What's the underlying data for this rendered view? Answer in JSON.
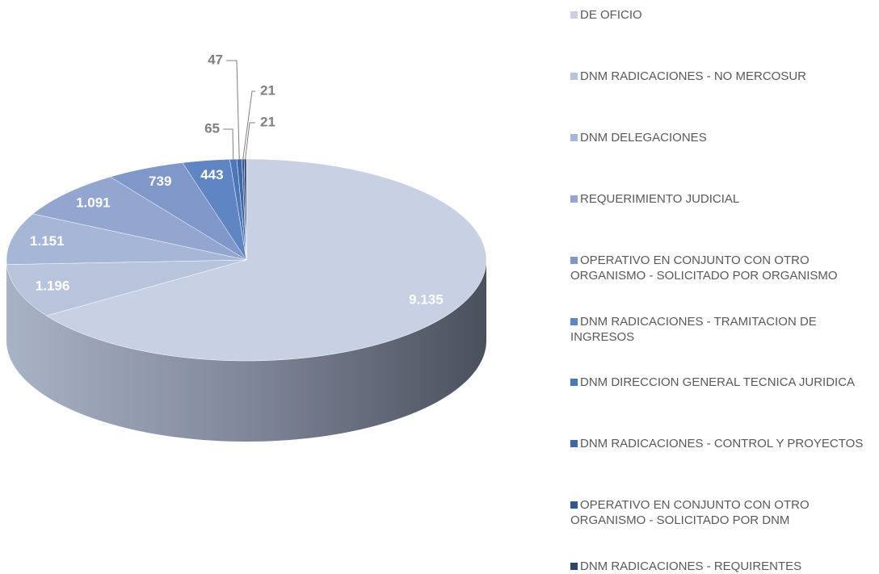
{
  "chart_data": {
    "type": "pie",
    "categories": [
      "DE OFICIO",
      "DNM RADICACIONES - NO MERCOSUR",
      "DNM DELEGACIONES",
      "REQUERIMIENTO JUDICIAL",
      "OPERATIVO EN CONJUNTO CON OTRO ORGANISMO - SOLICITADO POR ORGANISMO",
      "DNM RADICACIONES - TRAMITACION DE INGRESOS",
      "DNM DIRECCION GENERAL TECNICA JURIDICA",
      "DNM RADICACIONES - CONTROL Y PROYECTOS",
      "OPERATIVO EN CONJUNTO CON OTRO ORGANISMO - SOLICITADO POR DNM",
      "DNM RADICACIONES - REQUIRENTES"
    ],
    "values": [
      9135,
      1196,
      1151,
      1091,
      739,
      443,
      65,
      47,
      21,
      21
    ],
    "value_labels": [
      "9.135",
      "1.196",
      "1.151",
      "1.091",
      "739",
      "443",
      "65",
      "47",
      "21",
      "21"
    ],
    "colors": [
      "#c8d0e4",
      "#b8c4dc",
      "#a6b6d6",
      "#93a6cf",
      "#7f97c9",
      "#5f86c3",
      "#4c77b8",
      "#4068a7",
      "#345890",
      "#2c4670"
    ],
    "legend": "right"
  }
}
